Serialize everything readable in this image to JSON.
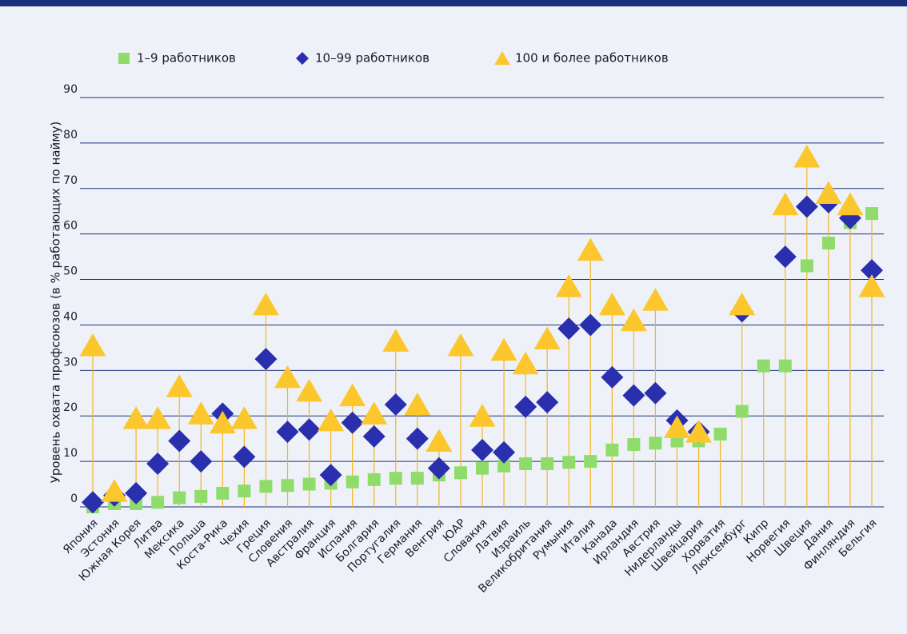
{
  "chart_data": {
    "type": "dot",
    "y_label": "Уровень охвата профсоюзов (в % работающих по найму)",
    "categories": [
      "Япония",
      "Эстония",
      "Южная Корея",
      "Литва",
      "Мексика",
      "Польша",
      "Коста-Рика",
      "Чехия",
      "Греция",
      "Словения",
      "Австралия",
      "Франция",
      "Испания",
      "Болгария",
      "Португалия",
      "Германия",
      "Венгрия",
      "ЮАР",
      "Словакия",
      "Латвия",
      "Израиль",
      "Великобритания",
      "Румыния",
      "Италия",
      "Канада",
      "Ирландия",
      "Австрия",
      "Нидерланды",
      "Швейцария",
      "Хорватия",
      "Люксембург",
      "Кипр",
      "Норвегия",
      "Швеция",
      "Дания",
      "Финляндия",
      "Бельгия"
    ],
    "series": [
      {
        "name": "1–9 работников",
        "color": "#8fdc6a",
        "marker": "square",
        "values": [
          0,
          0.7,
          0.7,
          1,
          2,
          2.3,
          3,
          3.5,
          4.5,
          4.7,
          5,
          5.2,
          5.5,
          6,
          6.3,
          6.3,
          7,
          7.5,
          8.5,
          9,
          9.5,
          9.5,
          9.8,
          10,
          12.5,
          13.7,
          14,
          14.5,
          14.5,
          16,
          21,
          31,
          31,
          53,
          58,
          62.5,
          64.5
        ]
      },
      {
        "name": "10–99 работников",
        "color": "#2a2fae",
        "marker": "diamond",
        "values": [
          1,
          2.5,
          3,
          9.5,
          14.5,
          10,
          20.5,
          11,
          32.5,
          16.5,
          17,
          7,
          18.5,
          15.5,
          22.5,
          15,
          8.5,
          null,
          12.5,
          12,
          22,
          23,
          39.2,
          40,
          28.5,
          24.5,
          25,
          19,
          16.5,
          null,
          43,
          null,
          55,
          66,
          67,
          63.5,
          52
        ]
      },
      {
        "name": "100 и более работников",
        "color": "#fcc62d",
        "marker": "triangle",
        "values": [
          35.5,
          3.5,
          19.5,
          19.5,
          26.5,
          20.5,
          18.5,
          19.5,
          44.5,
          28.5,
          25.5,
          19,
          24.5,
          20.5,
          36.5,
          22.5,
          14.5,
          35.5,
          20,
          34.5,
          31.5,
          37,
          48.5,
          56.5,
          44.5,
          41,
          45.5,
          17.5,
          16.5,
          null,
          44.5,
          null,
          66.5,
          77,
          69,
          66.5,
          48.5
        ]
      }
    ],
    "stem_color": "#f6b321",
    "ylim": [
      0,
      90
    ],
    "yticks": [
      0,
      10,
      20,
      30,
      40,
      50,
      60,
      70,
      80,
      90
    ],
    "grid": true
  }
}
